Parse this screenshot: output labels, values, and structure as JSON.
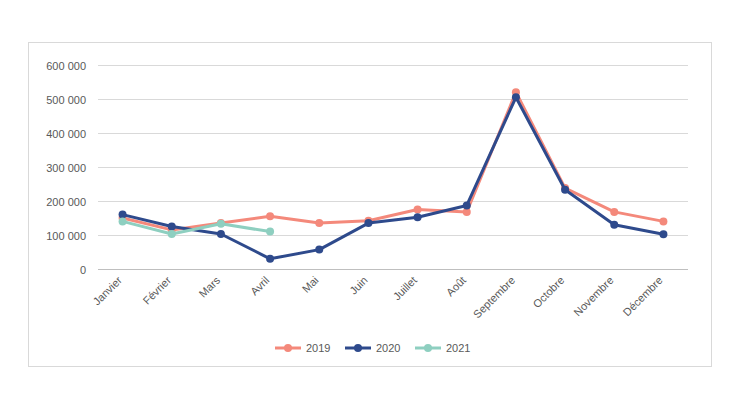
{
  "chart_data": {
    "type": "line",
    "categories": [
      "Janvier",
      "Février",
      "Mars",
      "Avril",
      "Mai",
      "Juin",
      "Juillet",
      "Août",
      "Septembre",
      "Octobre",
      "Novembre",
      "Décembre"
    ],
    "series": [
      {
        "name": "2019",
        "color": "#f4897b",
        "values": [
          150000,
          115000,
          135000,
          155000,
          135000,
          142000,
          175000,
          168000,
          520000,
          238000,
          168000,
          140000
        ]
      },
      {
        "name": "2020",
        "color": "#2e4a8c",
        "values": [
          160000,
          125000,
          103000,
          30000,
          57000,
          135000,
          152000,
          187000,
          505000,
          233000,
          130000,
          102000
        ]
      },
      {
        "name": "2021",
        "color": "#8ecfc0",
        "values": [
          140000,
          103000,
          133000,
          110000,
          null,
          null,
          null,
          null,
          null,
          null,
          null,
          null
        ]
      }
    ],
    "ylim": [
      0,
      600000
    ],
    "yticks": [
      0,
      {
        "value": 100000,
        "label": "100 000"
      },
      {
        "value": 200000,
        "label": "200 000"
      },
      {
        "value": 300000,
        "label": "300 000"
      },
      {
        "value": 400000,
        "label": "400 000"
      },
      {
        "value": 500000,
        "label": "500 000"
      },
      {
        "value": 600000,
        "label": "600 000"
      }
    ],
    "grid": true,
    "legend": "bottom",
    "marker": "circle",
    "line_style": "solid"
  }
}
